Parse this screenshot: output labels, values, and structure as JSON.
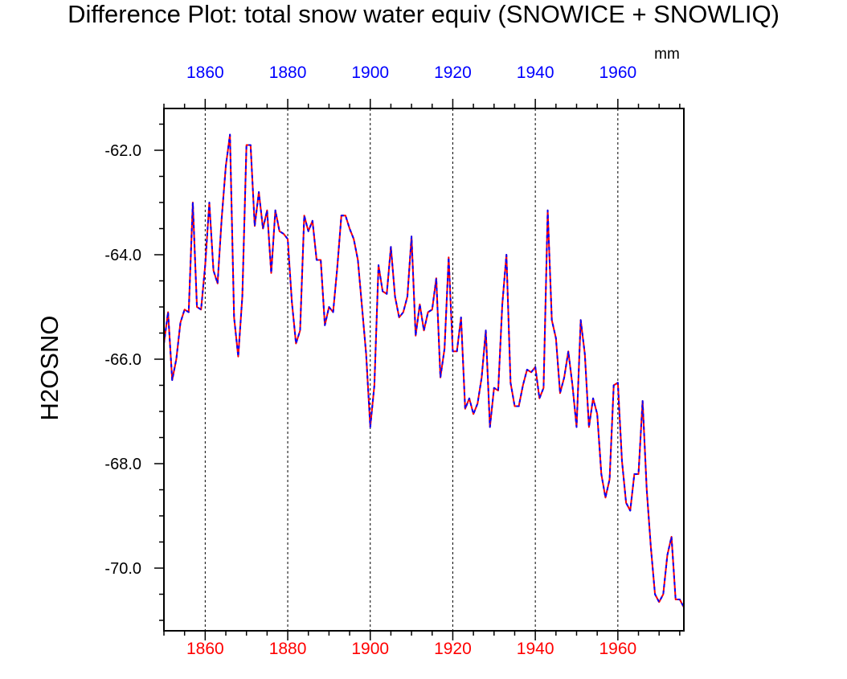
{
  "chart_data": {
    "type": "line",
    "title": "Difference Plot: total snow water equiv (SNOWICE + SNOWLIQ)",
    "ylabel": "H2OSNO",
    "units": "mm",
    "xlim": [
      1850,
      1976
    ],
    "ylim": [
      -71.2,
      -61.2
    ],
    "x_major_ticks": [
      1860,
      1880,
      1900,
      1920,
      1940,
      1960
    ],
    "y_major_ticks": [
      -62.0,
      -64.0,
      -66.0,
      -68.0,
      -70.0
    ],
    "top_axis_color": "#0000ff",
    "bottom_axis_color": "#ff0000",
    "grid_x": true,
    "series": [
      {
        "name": "series-red",
        "color": "#ff0000",
        "style": "solid",
        "x": [
          1850,
          1851,
          1852,
          1853,
          1854,
          1855,
          1856,
          1857,
          1858,
          1859,
          1860,
          1861,
          1862,
          1863,
          1864,
          1865,
          1866,
          1867,
          1868,
          1869,
          1870,
          1871,
          1872,
          1873,
          1874,
          1875,
          1876,
          1877,
          1878,
          1879,
          1880,
          1881,
          1882,
          1883,
          1884,
          1885,
          1886,
          1887,
          1888,
          1889,
          1890,
          1891,
          1892,
          1893,
          1894,
          1895,
          1896,
          1897,
          1898,
          1899,
          1900,
          1901,
          1902,
          1903,
          1904,
          1905,
          1906,
          1907,
          1908,
          1909,
          1910,
          1911,
          1912,
          1913,
          1914,
          1915,
          1916,
          1917,
          1918,
          1919,
          1920,
          1921,
          1922,
          1923,
          1924,
          1925,
          1926,
          1927,
          1928,
          1929,
          1930,
          1931,
          1932,
          1933,
          1934,
          1935,
          1936,
          1937,
          1938,
          1939,
          1940,
          1941,
          1942,
          1943,
          1944,
          1945,
          1946,
          1947,
          1948,
          1949,
          1950,
          1951,
          1952,
          1953,
          1954,
          1955,
          1956,
          1957,
          1958,
          1959,
          1960,
          1961,
          1962,
          1963,
          1964,
          1965,
          1966,
          1967,
          1968,
          1969,
          1970,
          1971,
          1972,
          1973,
          1974,
          1975,
          1976
        ],
        "values": [
          -65.7,
          -65.1,
          -66.4,
          -66.0,
          -65.3,
          -65.05,
          -65.1,
          -63.0,
          -65.0,
          -65.05,
          -64.2,
          -63.0,
          -64.3,
          -64.55,
          -63.3,
          -62.3,
          -61.7,
          -65.2,
          -65.95,
          -64.8,
          -61.9,
          -61.9,
          -63.45,
          -62.8,
          -63.5,
          -63.15,
          -64.35,
          -63.15,
          -63.55,
          -63.6,
          -63.7,
          -64.9,
          -65.7,
          -65.45,
          -63.25,
          -63.55,
          -63.35,
          -64.1,
          -64.1,
          -65.35,
          -65.0,
          -65.1,
          -64.25,
          -63.25,
          -63.25,
          -63.5,
          -63.7,
          -64.1,
          -65.0,
          -65.9,
          -67.3,
          -66.5,
          -64.2,
          -64.7,
          -64.75,
          -63.85,
          -64.8,
          -65.2,
          -65.1,
          -64.8,
          -63.65,
          -65.55,
          -64.95,
          -65.45,
          -65.1,
          -65.05,
          -64.45,
          -66.35,
          -65.8,
          -64.05,
          -65.85,
          -65.85,
          -65.2,
          -66.95,
          -66.75,
          -67.05,
          -66.85,
          -66.35,
          -65.45,
          -67.3,
          -66.55,
          -66.6,
          -64.95,
          -64.0,
          -66.45,
          -66.9,
          -66.9,
          -66.5,
          -66.2,
          -66.25,
          -66.15,
          -66.75,
          -66.55,
          -63.15,
          -65.25,
          -65.6,
          -66.65,
          -66.35,
          -65.85,
          -66.5,
          -67.3,
          -65.25,
          -65.9,
          -67.3,
          -66.75,
          -67.05,
          -68.2,
          -68.65,
          -68.3,
          -66.5,
          -66.45,
          -67.95,
          -68.75,
          -68.9,
          -68.2,
          -68.2,
          -66.8,
          -68.5,
          -69.6,
          -70.5,
          -70.65,
          -70.5,
          -69.75,
          -69.4,
          -70.6,
          -70.6,
          -70.75
        ]
      },
      {
        "name": "series-blue",
        "color": "#0000ff",
        "style": "dashed",
        "x": [
          1850,
          1851,
          1852,
          1853,
          1854,
          1855,
          1856,
          1857,
          1858,
          1859,
          1860,
          1861,
          1862,
          1863,
          1864,
          1865,
          1866,
          1867,
          1868,
          1869,
          1870,
          1871,
          1872,
          1873,
          1874,
          1875,
          1876,
          1877,
          1878,
          1879,
          1880,
          1881,
          1882,
          1883,
          1884,
          1885,
          1886,
          1887,
          1888,
          1889,
          1890,
          1891,
          1892,
          1893,
          1894,
          1895,
          1896,
          1897,
          1898,
          1899,
          1900,
          1901,
          1902,
          1903,
          1904,
          1905,
          1906,
          1907,
          1908,
          1909,
          1910,
          1911,
          1912,
          1913,
          1914,
          1915,
          1916,
          1917,
          1918,
          1919,
          1920,
          1921,
          1922,
          1923,
          1924,
          1925,
          1926,
          1927,
          1928,
          1929,
          1930,
          1931,
          1932,
          1933,
          1934,
          1935,
          1936,
          1937,
          1938,
          1939,
          1940,
          1941,
          1942,
          1943,
          1944,
          1945,
          1946,
          1947,
          1948,
          1949,
          1950,
          1951,
          1952,
          1953,
          1954,
          1955,
          1956,
          1957,
          1958,
          1959,
          1960,
          1961,
          1962,
          1963,
          1964,
          1965,
          1966,
          1967,
          1968,
          1969,
          1970,
          1971,
          1972,
          1973,
          1974,
          1975,
          1976
        ],
        "values": [
          -65.7,
          -65.1,
          -66.4,
          -66.0,
          -65.3,
          -65.05,
          -65.1,
          -63.0,
          -65.0,
          -65.05,
          -64.2,
          -63.0,
          -64.3,
          -64.55,
          -63.3,
          -62.3,
          -61.7,
          -65.2,
          -65.95,
          -64.8,
          -61.9,
          -61.9,
          -63.45,
          -62.8,
          -63.5,
          -63.15,
          -64.35,
          -63.15,
          -63.55,
          -63.6,
          -63.7,
          -64.9,
          -65.7,
          -65.45,
          -63.25,
          -63.55,
          -63.35,
          -64.1,
          -64.1,
          -65.35,
          -65.0,
          -65.1,
          -64.25,
          -63.25,
          -63.25,
          -63.5,
          -63.7,
          -64.1,
          -65.0,
          -65.9,
          -67.3,
          -66.5,
          -64.2,
          -64.7,
          -64.75,
          -63.85,
          -64.8,
          -65.2,
          -65.1,
          -64.8,
          -63.65,
          -65.55,
          -64.95,
          -65.45,
          -65.1,
          -65.05,
          -64.45,
          -66.35,
          -65.8,
          -64.05,
          -65.85,
          -65.85,
          -65.2,
          -66.95,
          -66.75,
          -67.05,
          -66.85,
          -66.35,
          -65.45,
          -67.3,
          -66.55,
          -66.6,
          -64.95,
          -64.0,
          -66.45,
          -66.9,
          -66.9,
          -66.5,
          -66.2,
          -66.25,
          -66.15,
          -66.75,
          -66.55,
          -63.15,
          -65.25,
          -65.6,
          -66.65,
          -66.35,
          -65.85,
          -66.5,
          -67.3,
          -65.25,
          -65.9,
          -67.3,
          -66.75,
          -67.05,
          -68.2,
          -68.65,
          -68.3,
          -66.5,
          -66.45,
          -67.95,
          -68.75,
          -68.9,
          -68.2,
          -68.2,
          -66.8,
          -68.5,
          -69.6,
          -70.5,
          -70.65,
          -70.5,
          -69.75,
          -69.4,
          -70.6,
          -70.6,
          -70.75
        ]
      }
    ]
  }
}
